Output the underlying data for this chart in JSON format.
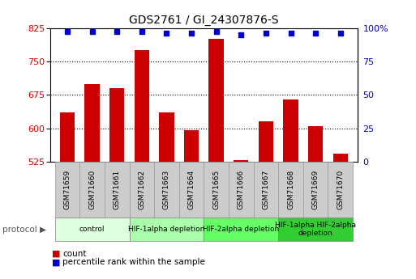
{
  "title": "GDS2761 / GI_24307876-S",
  "samples": [
    "GSM71659",
    "GSM71660",
    "GSM71661",
    "GSM71662",
    "GSM71663",
    "GSM71664",
    "GSM71665",
    "GSM71666",
    "GSM71667",
    "GSM71668",
    "GSM71669",
    "GSM71670"
  ],
  "counts": [
    635,
    700,
    690,
    775,
    635,
    595,
    800,
    528,
    615,
    665,
    605,
    543
  ],
  "percentile_ranks": [
    97,
    97,
    97,
    97,
    96,
    96,
    97,
    95,
    96,
    96,
    96,
    96
  ],
  "ylim_left": [
    525,
    825
  ],
  "ylim_right": [
    0,
    100
  ],
  "yticks_left": [
    525,
    600,
    675,
    750,
    825
  ],
  "yticks_right": [
    0,
    25,
    50,
    75,
    100
  ],
  "ytick_labels_left": [
    "525",
    "600",
    "675",
    "750",
    "825"
  ],
  "ytick_labels_right": [
    "0",
    "25",
    "50",
    "75",
    "100%"
  ],
  "bar_color": "#cc0000",
  "dot_color": "#0000cc",
  "grid_color": "#000000",
  "bg_color": "#ffffff",
  "tick_label_color_left": "#cc0000",
  "tick_label_color_right": "#0000cc",
  "protocol_groups": [
    {
      "label": "control",
      "start": 0,
      "end": 2,
      "color": "#ddffdd"
    },
    {
      "label": "HIF-1alpha depletion",
      "start": 3,
      "end": 5,
      "color": "#aaffaa"
    },
    {
      "label": "HIF-2alpha depletion",
      "start": 6,
      "end": 8,
      "color": "#66ff66"
    },
    {
      "label": "HIF-1alpha HIF-2alpha\ndepletion",
      "start": 9,
      "end": 11,
      "color": "#33cc33"
    }
  ],
  "legend_count_label": "count",
  "legend_pct_label": "percentile rank within the sample",
  "protocol_label": "protocol",
  "bar_width": 0.6,
  "sample_box_color": "#cccccc",
  "sample_box_edge": "#999999"
}
